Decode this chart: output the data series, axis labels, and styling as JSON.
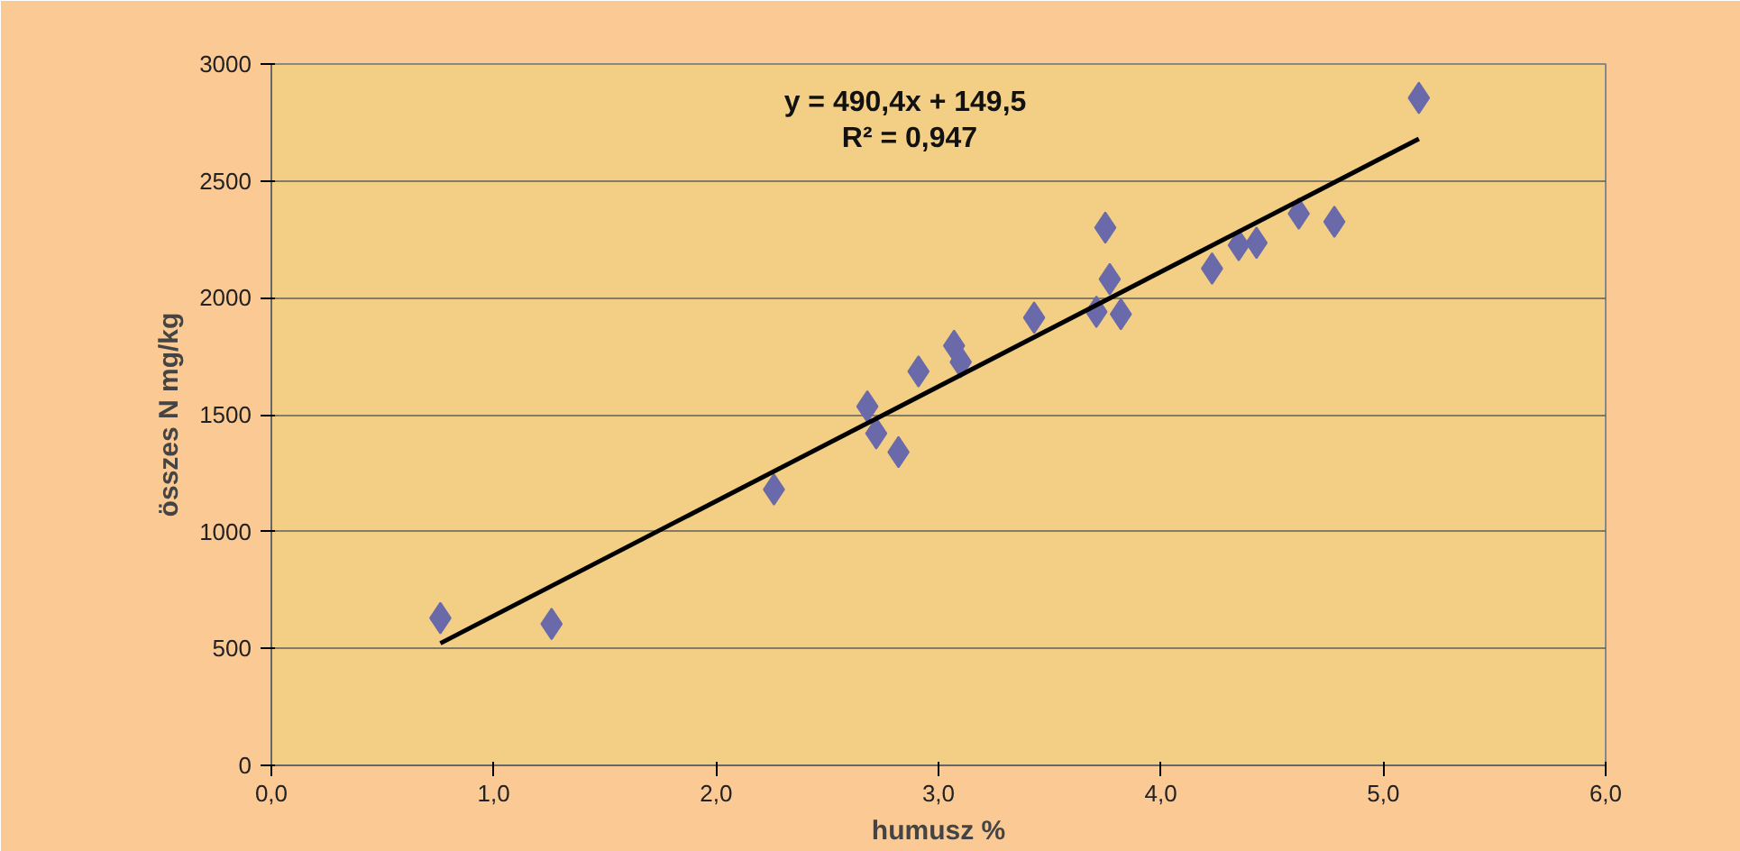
{
  "chart_data": {
    "type": "scatter",
    "xlabel": "humusz %",
    "ylabel": "összes N mg/kg",
    "xlim": [
      0,
      6
    ],
    "ylim": [
      0,
      3000
    ],
    "xticks": [
      {
        "value": 0,
        "label": "0,0"
      },
      {
        "value": 1,
        "label": "1,0"
      },
      {
        "value": 2,
        "label": "2,0"
      },
      {
        "value": 3,
        "label": "3,0"
      },
      {
        "value": 4,
        "label": "4,0"
      },
      {
        "value": 5,
        "label": "5,0"
      },
      {
        "value": 6,
        "label": "6,0"
      }
    ],
    "yticks": [
      0,
      500,
      1000,
      1500,
      2000,
      2500,
      3000
    ],
    "grid": "y",
    "marker": "diamond",
    "annotations": [
      "y = 490,4x + 149,5",
      "R² = 0,947"
    ],
    "series": [
      {
        "color": "#6a6aaa",
        "x": [
          0.76,
          1.26,
          2.26,
          2.68,
          2.72,
          2.82,
          2.91,
          3.07,
          3.1,
          3.43,
          3.71,
          3.75,
          3.77,
          3.82,
          4.23,
          4.35,
          4.43,
          4.62,
          4.78,
          5.16
        ],
        "values": [
          630,
          605,
          1180,
          1535,
          1420,
          1340,
          1685,
          1795,
          1725,
          1915,
          1940,
          2300,
          2080,
          1930,
          2125,
          2225,
          2235,
          2360,
          2325,
          2855
        ]
      },
      {
        "type": "line",
        "color": "#000000",
        "marker": "none",
        "x": [
          0.76,
          5.16
        ],
        "values": [
          522,
          2680
        ]
      }
    ]
  }
}
